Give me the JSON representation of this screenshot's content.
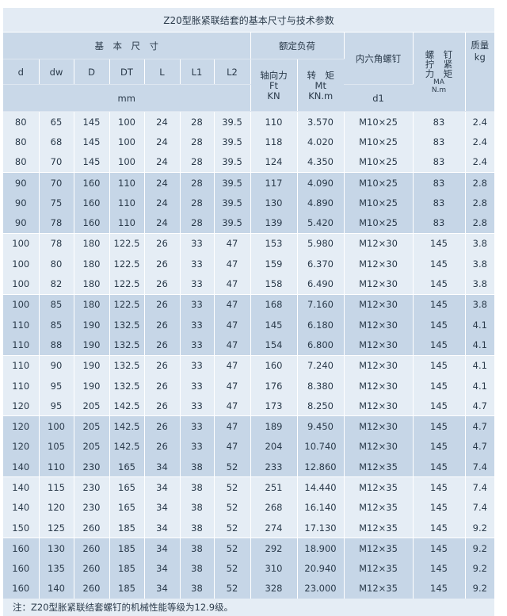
{
  "title": "Z20型胀紧联结套的基本尺寸与技术参数",
  "header": {
    "basic_dims": "基　本　尺　寸",
    "rated_load": "额定负荷",
    "screw": "内六角螺钉",
    "torque_label": "螺　钉\n拧　紧\n力　矩",
    "torque_sym": "MA",
    "torque_unit": "N.m",
    "mass": "质量",
    "mass_unit": "kg",
    "cols": [
      "d",
      "dw",
      "D",
      "DT",
      "L",
      "L1",
      "L2"
    ],
    "axial": "轴向力",
    "axial_sym": "Ft",
    "axial_unit": "KN",
    "moment": "转　矩",
    "moment_sym": "Mt",
    "moment_unit": "KN.m",
    "mm": "mm",
    "d1": "d1"
  },
  "rows": [
    [
      "80",
      "65",
      "145",
      "100",
      "24",
      "28",
      "39.5",
      "110",
      "3.570",
      "M10×25",
      "83",
      "2.4"
    ],
    [
      "80",
      "68",
      "145",
      "100",
      "24",
      "28",
      "39.5",
      "118",
      "4.020",
      "M10×25",
      "83",
      "2.4"
    ],
    [
      "80",
      "70",
      "145",
      "100",
      "24",
      "28",
      "39.5",
      "124",
      "4.350",
      "M10×25",
      "83",
      "2.4"
    ],
    [
      "90",
      "70",
      "160",
      "110",
      "24",
      "28",
      "39.5",
      "117",
      "4.090",
      "M10×25",
      "83",
      "2.8"
    ],
    [
      "90",
      "75",
      "160",
      "110",
      "24",
      "28",
      "39.5",
      "130",
      "4.890",
      "M10×25",
      "83",
      "2.8"
    ],
    [
      "90",
      "78",
      "160",
      "110",
      "24",
      "28",
      "39.5",
      "139",
      "5.420",
      "M10×25",
      "83",
      "2.8"
    ],
    [
      "100",
      "78",
      "180",
      "122.5",
      "26",
      "33",
      "47",
      "153",
      "5.980",
      "M12×30",
      "145",
      "3.8"
    ],
    [
      "100",
      "80",
      "180",
      "122.5",
      "26",
      "33",
      "47",
      "159",
      "6.370",
      "M12×30",
      "145",
      "3.8"
    ],
    [
      "100",
      "82",
      "180",
      "122.5",
      "26",
      "33",
      "47",
      "158",
      "6.490",
      "M12×30",
      "145",
      "3.8"
    ],
    [
      "100",
      "85",
      "180",
      "122.5",
      "26",
      "33",
      "47",
      "168",
      "7.160",
      "M12×30",
      "145",
      "3.8"
    ],
    [
      "110",
      "85",
      "190",
      "132.5",
      "26",
      "33",
      "47",
      "145",
      "6.180",
      "M12×30",
      "145",
      "4.1"
    ],
    [
      "110",
      "88",
      "190",
      "132.5",
      "26",
      "33",
      "47",
      "154",
      "6.800",
      "M12×30",
      "145",
      "4.1"
    ],
    [
      "110",
      "90",
      "190",
      "132.5",
      "26",
      "33",
      "47",
      "160",
      "7.240",
      "M12×30",
      "145",
      "4.1"
    ],
    [
      "110",
      "95",
      "190",
      "132.5",
      "26",
      "33",
      "47",
      "176",
      "8.380",
      "M12×30",
      "145",
      "4.1"
    ],
    [
      "120",
      "95",
      "205",
      "142.5",
      "26",
      "33",
      "47",
      "173",
      "8.250",
      "M12×30",
      "145",
      "4.7"
    ],
    [
      "120",
      "100",
      "205",
      "142.5",
      "26",
      "33",
      "47",
      "189",
      "9.450",
      "M12×30",
      "145",
      "4.7"
    ],
    [
      "120",
      "105",
      "205",
      "142.5",
      "26",
      "33",
      "47",
      "204",
      "10.740",
      "M12×30",
      "145",
      "4.7"
    ],
    [
      "140",
      "110",
      "230",
      "165",
      "34",
      "38",
      "52",
      "233",
      "12.860",
      "M12×35",
      "145",
      "7.4"
    ],
    [
      "140",
      "115",
      "230",
      "165",
      "34",
      "38",
      "52",
      "251",
      "14.440",
      "M12×35",
      "145",
      "7.4"
    ],
    [
      "140",
      "120",
      "230",
      "165",
      "34",
      "38",
      "52",
      "268",
      "16.140",
      "M12×35",
      "145",
      "7.4"
    ],
    [
      "150",
      "125",
      "260",
      "185",
      "34",
      "38",
      "52",
      "274",
      "17.130",
      "M12×35",
      "145",
      "9.2"
    ],
    [
      "160",
      "130",
      "260",
      "185",
      "34",
      "38",
      "52",
      "292",
      "18.900",
      "M12×35",
      "145",
      "9.2"
    ],
    [
      "160",
      "135",
      "260",
      "185",
      "34",
      "38",
      "52",
      "310",
      "20.940",
      "M12×35",
      "145",
      "9.2"
    ],
    [
      "160",
      "140",
      "260",
      "185",
      "34",
      "38",
      "52",
      "328",
      "23.000",
      "M12×35",
      "145",
      "9.2"
    ]
  ],
  "note": "注：Z20型胀紧联结套螺钉的机械性能等级为12.9级。",
  "colors": {
    "light": "#e5edf5",
    "dark": "#c6d6e7",
    "text": "#2a3a4a"
  }
}
